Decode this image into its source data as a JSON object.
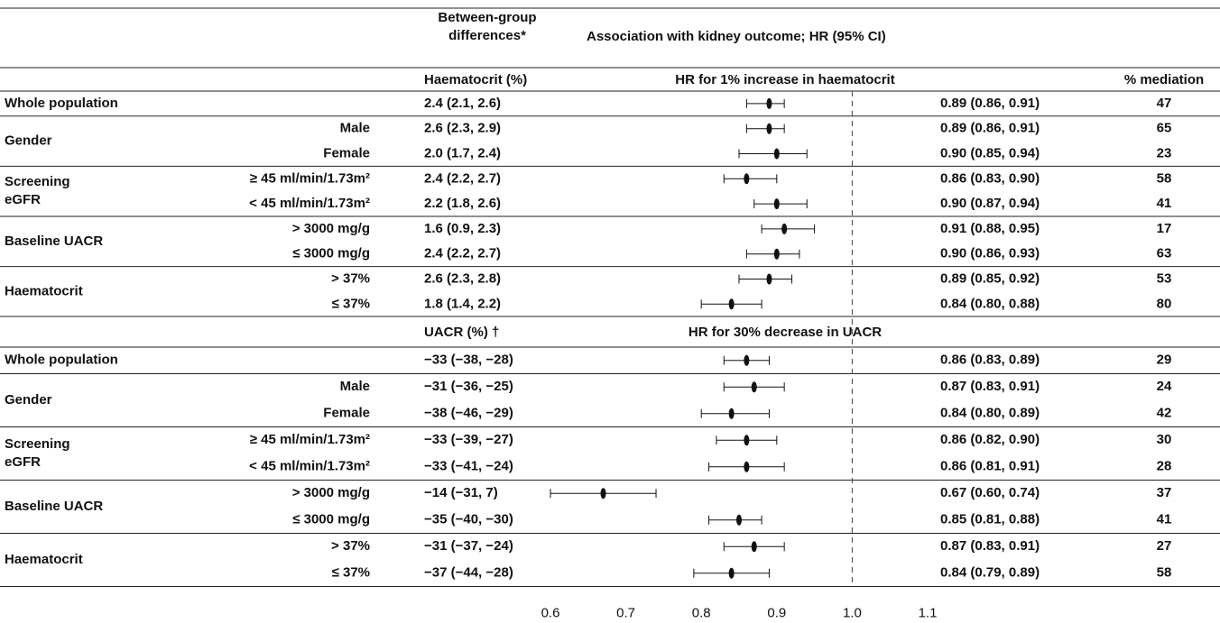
{
  "chart_data": {
    "type": "forest",
    "header_difference": "Between-group\ndifferences*",
    "header_association": "Association with kidney outcome; HR (95% CI)",
    "xlim": [
      0.6,
      1.1
    ],
    "xticks": [
      0.6,
      0.7,
      0.8,
      0.9,
      {
        "value": 1,
        "label": "1.0"
      },
      1.1
    ],
    "reference": 1,
    "sections": [
      {
        "difference_header": "Haematocrit (%)",
        "hr_header": "HR for 1% increase in haematocrit",
        "mediation_header": "% mediation",
        "groups": [
          "Whole population",
          "Gender",
          null,
          "Screening\neGFR",
          null,
          "Baseline UACR",
          null,
          "Haematocrit",
          null
        ],
        "subgroups": [
          null,
          "Male",
          "Female",
          "≥ 45 ml/min/1.73m²",
          "< 45 ml/min/1.73m²",
          "> 3000 mg/g",
          "≤ 3000 mg/g",
          "> 37%",
          "≤ 37%"
        ],
        "differences": [
          "2.4 (2.1, 2.6)",
          "2.6 (2.3, 2.9)",
          "2.0 (1.7, 2.4)",
          "2.4 (2.2, 2.7)",
          "2.2 (1.8, 2.6)",
          "1.6 (0.9, 2.3)",
          "2.4 (2.2, 2.7)",
          "2.6 (2.3, 2.8)",
          "1.8 (1.4, 2.2)"
        ],
        "values": [
          0.89,
          0.89,
          0.9,
          0.86,
          0.9,
          0.91,
          0.9,
          0.89,
          0.84
        ],
        "lower": [
          0.86,
          0.86,
          0.85,
          0.83,
          0.87,
          0.88,
          0.86,
          0.85,
          0.8
        ],
        "upper": [
          0.91,
          0.91,
          0.94,
          0.9,
          0.94,
          0.95,
          0.93,
          0.92,
          0.88
        ],
        "value_labels": [
          "0.89 (0.86, 0.91)",
          "0.89 (0.86, 0.91)",
          "0.90 (0.85, 0.94)",
          "0.86 (0.83, 0.90)",
          "0.90 (0.87, 0.94)",
          "0.91 (0.88, 0.95)",
          "0.90 (0.86, 0.93)",
          "0.89 (0.85, 0.92)",
          "0.84 (0.80, 0.88)"
        ],
        "mediation": [
          47,
          65,
          23,
          58,
          41,
          17,
          63,
          53,
          80
        ]
      },
      {
        "difference_header": "UACR (%) †",
        "hr_header": "HR for 30% decrease in UACR",
        "groups": [
          "Whole population",
          "Gender",
          null,
          "Screening\neGFR",
          null,
          "Baseline UACR",
          null,
          "Haematocrit",
          null
        ],
        "subgroups": [
          null,
          "Male",
          "Female",
          "≥ 45 ml/min/1.73m²",
          "< 45 ml/min/1.73m²",
          "> 3000 mg/g",
          "≤ 3000 mg/g",
          "> 37%",
          "≤ 37%"
        ],
        "differences": [
          "−33 (−38, −28)",
          "−31 (−36, −25)",
          "−38 (−46, −29)",
          "−33 (−39, −27)",
          "−33 (−41, −24)",
          "−14 (−31, 7)",
          "−35 (−40, −30)",
          "−31 (−37, −24)",
          "−37 (−44, −28)"
        ],
        "values": [
          0.86,
          0.87,
          0.84,
          0.86,
          0.86,
          0.67,
          0.85,
          0.87,
          0.84
        ],
        "lower": [
          0.83,
          0.83,
          0.8,
          0.82,
          0.81,
          0.6,
          0.81,
          0.83,
          0.79
        ],
        "upper": [
          0.89,
          0.91,
          0.89,
          0.9,
          0.91,
          0.74,
          0.88,
          0.91,
          0.89
        ],
        "value_labels": [
          "0.86 (0.83, 0.89)",
          "0.87 (0.83, 0.91)",
          "0.84 (0.80, 0.89)",
          "0.86 (0.82, 0.90)",
          "0.86 (0.81, 0.91)",
          "0.67 (0.60, 0.74)",
          "0.85 (0.81, 0.88)",
          "0.87 (0.83, 0.91)",
          "0.84 (0.79, 0.89)"
        ],
        "mediation": [
          29,
          24,
          42,
          30,
          28,
          37,
          41,
          27,
          58
        ]
      }
    ]
  }
}
